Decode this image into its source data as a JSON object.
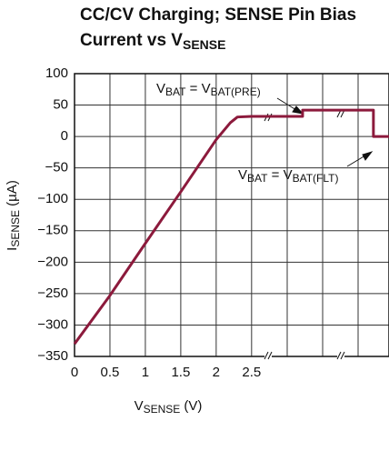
{
  "chart_data": {
    "type": "line",
    "title": [
      "CC/CV Charging; SENSE Pin Bias",
      {
        "parts": [
          "Current vs V",
          "SENSE"
        ]
      }
    ],
    "x_label": {
      "parts": [
        "V",
        "SENSE",
        " (V)"
      ]
    },
    "y_label": {
      "parts": [
        "I",
        "SENSE",
        " (µA)"
      ]
    },
    "annotations": [
      {
        "parts": [
          "V",
          "BAT",
          " = V",
          "BAT(PRE)"
        ]
      },
      {
        "parts": [
          "V",
          "BAT",
          " = V",
          "BAT(FLT)"
        ]
      }
    ],
    "xlim": [
      0,
      4.44
    ],
    "ylim": [
      -350,
      100
    ],
    "xticks": [
      0,
      0.5,
      1,
      1.5,
      2,
      2.5
    ],
    "yticks": [
      {
        "value": -350,
        "label": "−350"
      },
      {
        "value": -300,
        "label": "−300"
      },
      {
        "value": -250,
        "label": "−250"
      },
      {
        "value": -200,
        "label": "−200"
      },
      {
        "value": -150,
        "label": "−150"
      },
      {
        "value": -100,
        "label": "−100"
      },
      {
        "value": -50,
        "label": "−50"
      },
      0,
      50,
      100
    ],
    "grid": true,
    "series": [
      {
        "color": "#8c1a3c",
        "x": [
          0,
          0.5,
          1,
          1.5,
          2,
          2.2,
          2.3,
          2.5,
          3.22,
          3.22,
          4.22,
          4.22,
          4.44
        ],
        "values": [
          -330,
          -253,
          -170,
          -88,
          -5,
          22,
          31,
          32,
          32,
          42,
          42,
          0,
          0
        ]
      }
    ]
  }
}
